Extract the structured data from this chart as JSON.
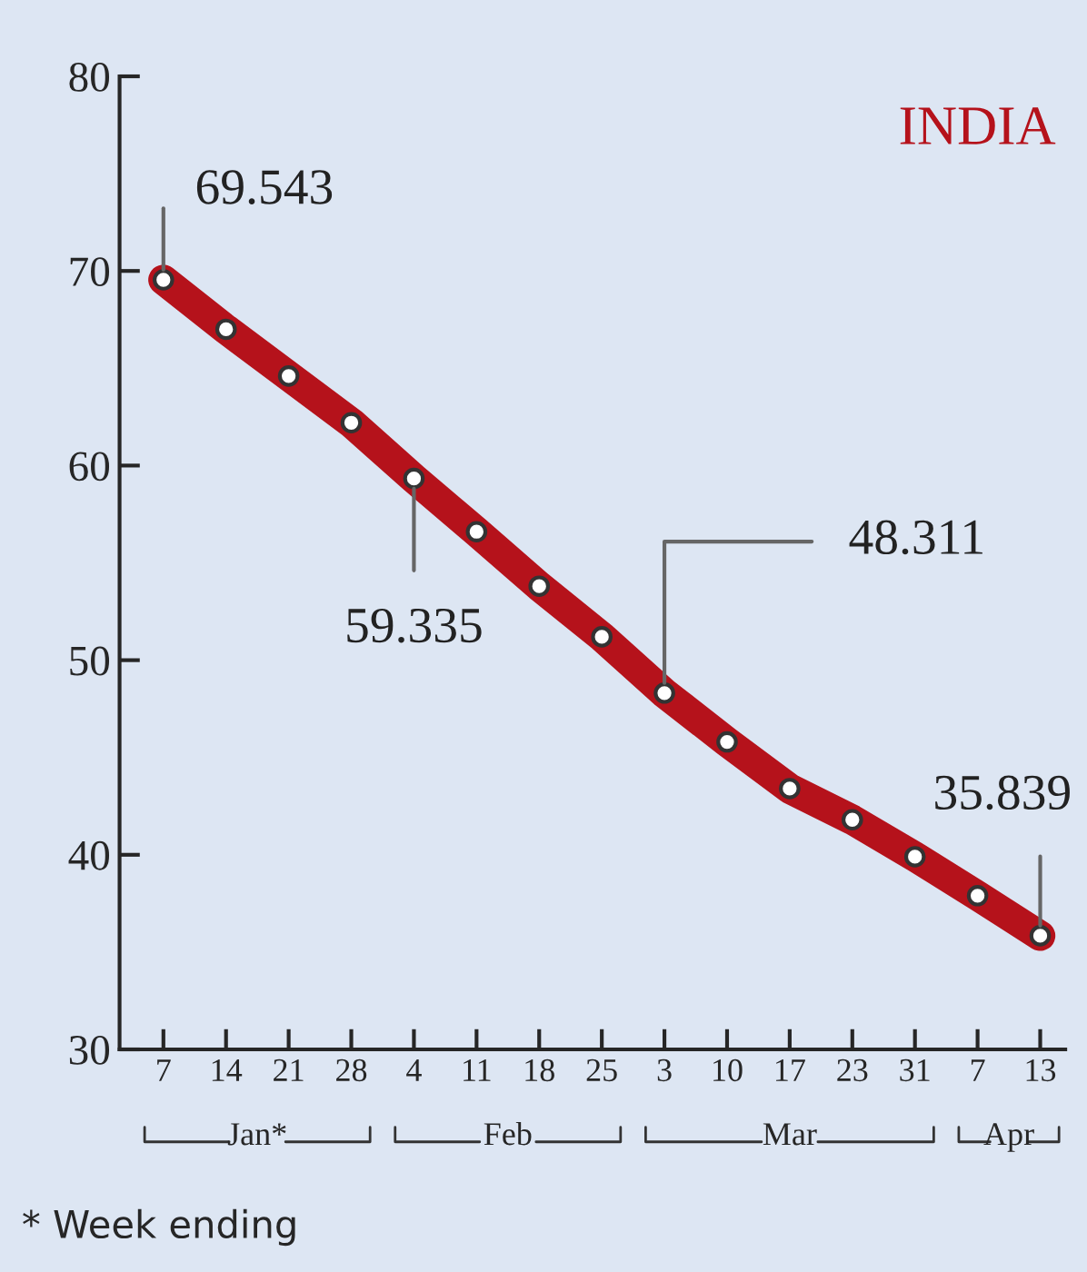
{
  "chart_data": {
    "type": "line",
    "title": "INDIA",
    "categories": [
      "7",
      "14",
      "21",
      "28",
      "4",
      "11",
      "18",
      "25",
      "3",
      "10",
      "17",
      "23",
      "31",
      "7",
      "13"
    ],
    "series": [
      {
        "color": "#b5121b",
        "values": [
          69.543,
          67.0,
          64.6,
          62.2,
          59.335,
          56.6,
          53.8,
          51.2,
          48.311,
          45.8,
          43.4,
          41.8,
          39.9,
          37.9,
          35.839
        ],
        "value_labels": [
          "69.543",
          null,
          null,
          null,
          "59.335",
          null,
          null,
          null,
          "48.311",
          null,
          null,
          null,
          null,
          null,
          "35.839"
        ]
      }
    ],
    "ylim": [
      30,
      80
    ],
    "yticks": [
      30,
      40,
      50,
      60,
      70,
      80
    ],
    "grid": false,
    "legend": false,
    "marker": "circle",
    "line_style": "solid",
    "annotations": [
      "Jan*",
      "Feb",
      "Mar",
      "Apr",
      "* Week ending"
    ]
  }
}
